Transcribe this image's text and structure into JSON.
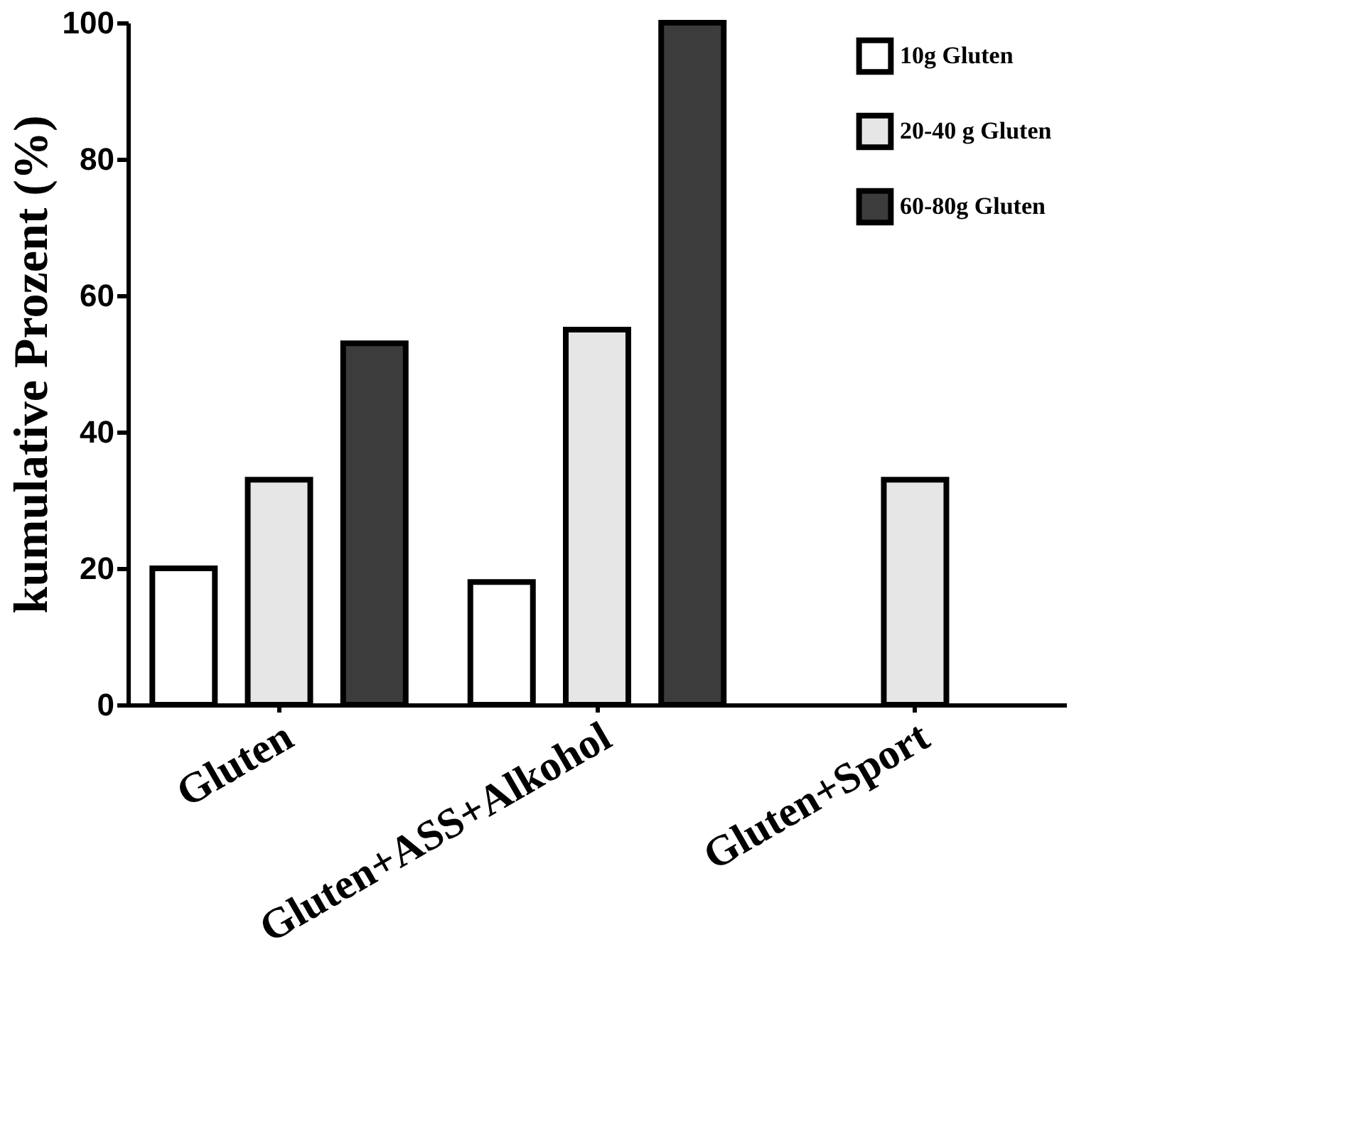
{
  "chart_data": {
    "type": "bar",
    "ylabel": "kumulative Prozent    (%)",
    "categories": [
      "Gluten",
      "Gluten+ASS+Alkohol",
      "Gluten+Sport"
    ],
    "series": [
      {
        "name": "10g Gluten",
        "color": "#ffffff",
        "values": [
          20,
          18,
          null
        ]
      },
      {
        "name": "20-40 g Gluten",
        "color": "#e6e6e6",
        "values": [
          33,
          55,
          33
        ]
      },
      {
        "name": "60-80g Gluten",
        "color": "#3c3c3c",
        "values": [
          53,
          100,
          null
        ]
      }
    ],
    "ylim": [
      0,
      100
    ],
    "yticks": [
      0,
      20,
      40,
      60,
      80,
      100
    ],
    "grid": false,
    "legend": "top right"
  }
}
